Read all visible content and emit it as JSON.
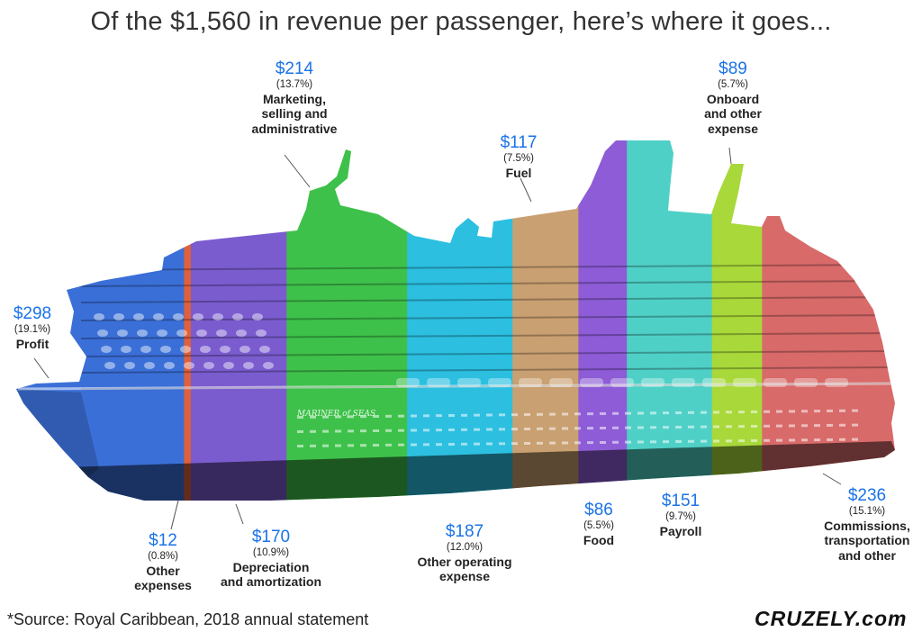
{
  "chart_data": {
    "type": "bar",
    "title": "Of the $1,560 in revenue per passenger, here’s where it goes...",
    "total": 1560,
    "segments": [
      {
        "key": "profit",
        "name": "Profit",
        "amount_label": "$298",
        "pct_label": "(19.1%)",
        "value": 298,
        "color": "#3b6fd8"
      },
      {
        "key": "other_expenses",
        "name": "Other expenses",
        "amount_label": "$12",
        "pct_label": "(0.8%)",
        "value": 12,
        "color": "#e0603a"
      },
      {
        "key": "depreciation",
        "name": "Depreciation and amortization",
        "amount_label": "$170",
        "pct_label": "(10.9%)",
        "value": 170,
        "color": "#7a5ccf"
      },
      {
        "key": "marketing",
        "name": "Marketing, selling and administrative",
        "amount_label": "$214",
        "pct_label": "(13.7%)",
        "value": 214,
        "color": "#3ec14a"
      },
      {
        "key": "other_operating",
        "name": "Other operating expense",
        "amount_label": "$187",
        "pct_label": "(12.0%)",
        "value": 187,
        "color": "#2cbfe0"
      },
      {
        "key": "fuel",
        "name": "Fuel",
        "amount_label": "$117",
        "pct_label": "(7.5%)",
        "value": 117,
        "color": "#c9a072"
      },
      {
        "key": "food",
        "name": "Food",
        "amount_label": "$86",
        "pct_label": "(5.5%)",
        "value": 86,
        "color": "#8d5cd6"
      },
      {
        "key": "payroll",
        "name": "Payroll",
        "amount_label": "$151",
        "pct_label": "(9.7%)",
        "value": 151,
        "color": "#4fd0c6"
      },
      {
        "key": "onboard",
        "name": "Onboard and other expense",
        "amount_label": "$89",
        "pct_label": "(5.7%)",
        "value": 89,
        "color": "#a8d83a"
      },
      {
        "key": "commissions",
        "name": "Commissions, transportation and other",
        "amount_label": "$236",
        "pct_label": "(15.1%)",
        "value": 236,
        "color": "#d86a6a"
      }
    ]
  },
  "labels": {
    "profit": {
      "amt": "$298",
      "pct": "(19.1%)",
      "l1": "Profit",
      "l2": "",
      "l3": ""
    },
    "other_expenses": {
      "amt": "$12",
      "pct": "(0.8%)",
      "l1": "Other",
      "l2": "expenses",
      "l3": ""
    },
    "depreciation": {
      "amt": "$170",
      "pct": "(10.9%)",
      "l1": "Depreciation",
      "l2": "and amortization",
      "l3": ""
    },
    "marketing": {
      "amt": "$214",
      "pct": "(13.7%)",
      "l1": "Marketing,",
      "l2": "selling and",
      "l3": "administrative"
    },
    "other_operating": {
      "amt": "$187",
      "pct": "(12.0%)",
      "l1": "Other operating",
      "l2": "expense",
      "l3": ""
    },
    "fuel": {
      "amt": "$117",
      "pct": "(7.5%)",
      "l1": "Fuel",
      "l2": "",
      "l3": ""
    },
    "food": {
      "amt": "$86",
      "pct": "(5.5%)",
      "l1": "Food",
      "l2": "",
      "l3": ""
    },
    "payroll": {
      "amt": "$151",
      "pct": "(9.7%)",
      "l1": "Payroll",
      "l2": "",
      "l3": ""
    },
    "onboard": {
      "amt": "$89",
      "pct": "(5.7%)",
      "l1": "Onboard",
      "l2": "and other",
      "l3": "expense"
    },
    "commissions": {
      "amt": "$236",
      "pct": "(15.1%)",
      "l1": "Commissions,",
      "l2": "transportation",
      "l3": "and other"
    }
  },
  "ship_name": "MARINER of SEAS",
  "footer": {
    "source": "*Source: Royal Caribbean, 2018 annual statement",
    "brand": "CRUZELY.com"
  }
}
